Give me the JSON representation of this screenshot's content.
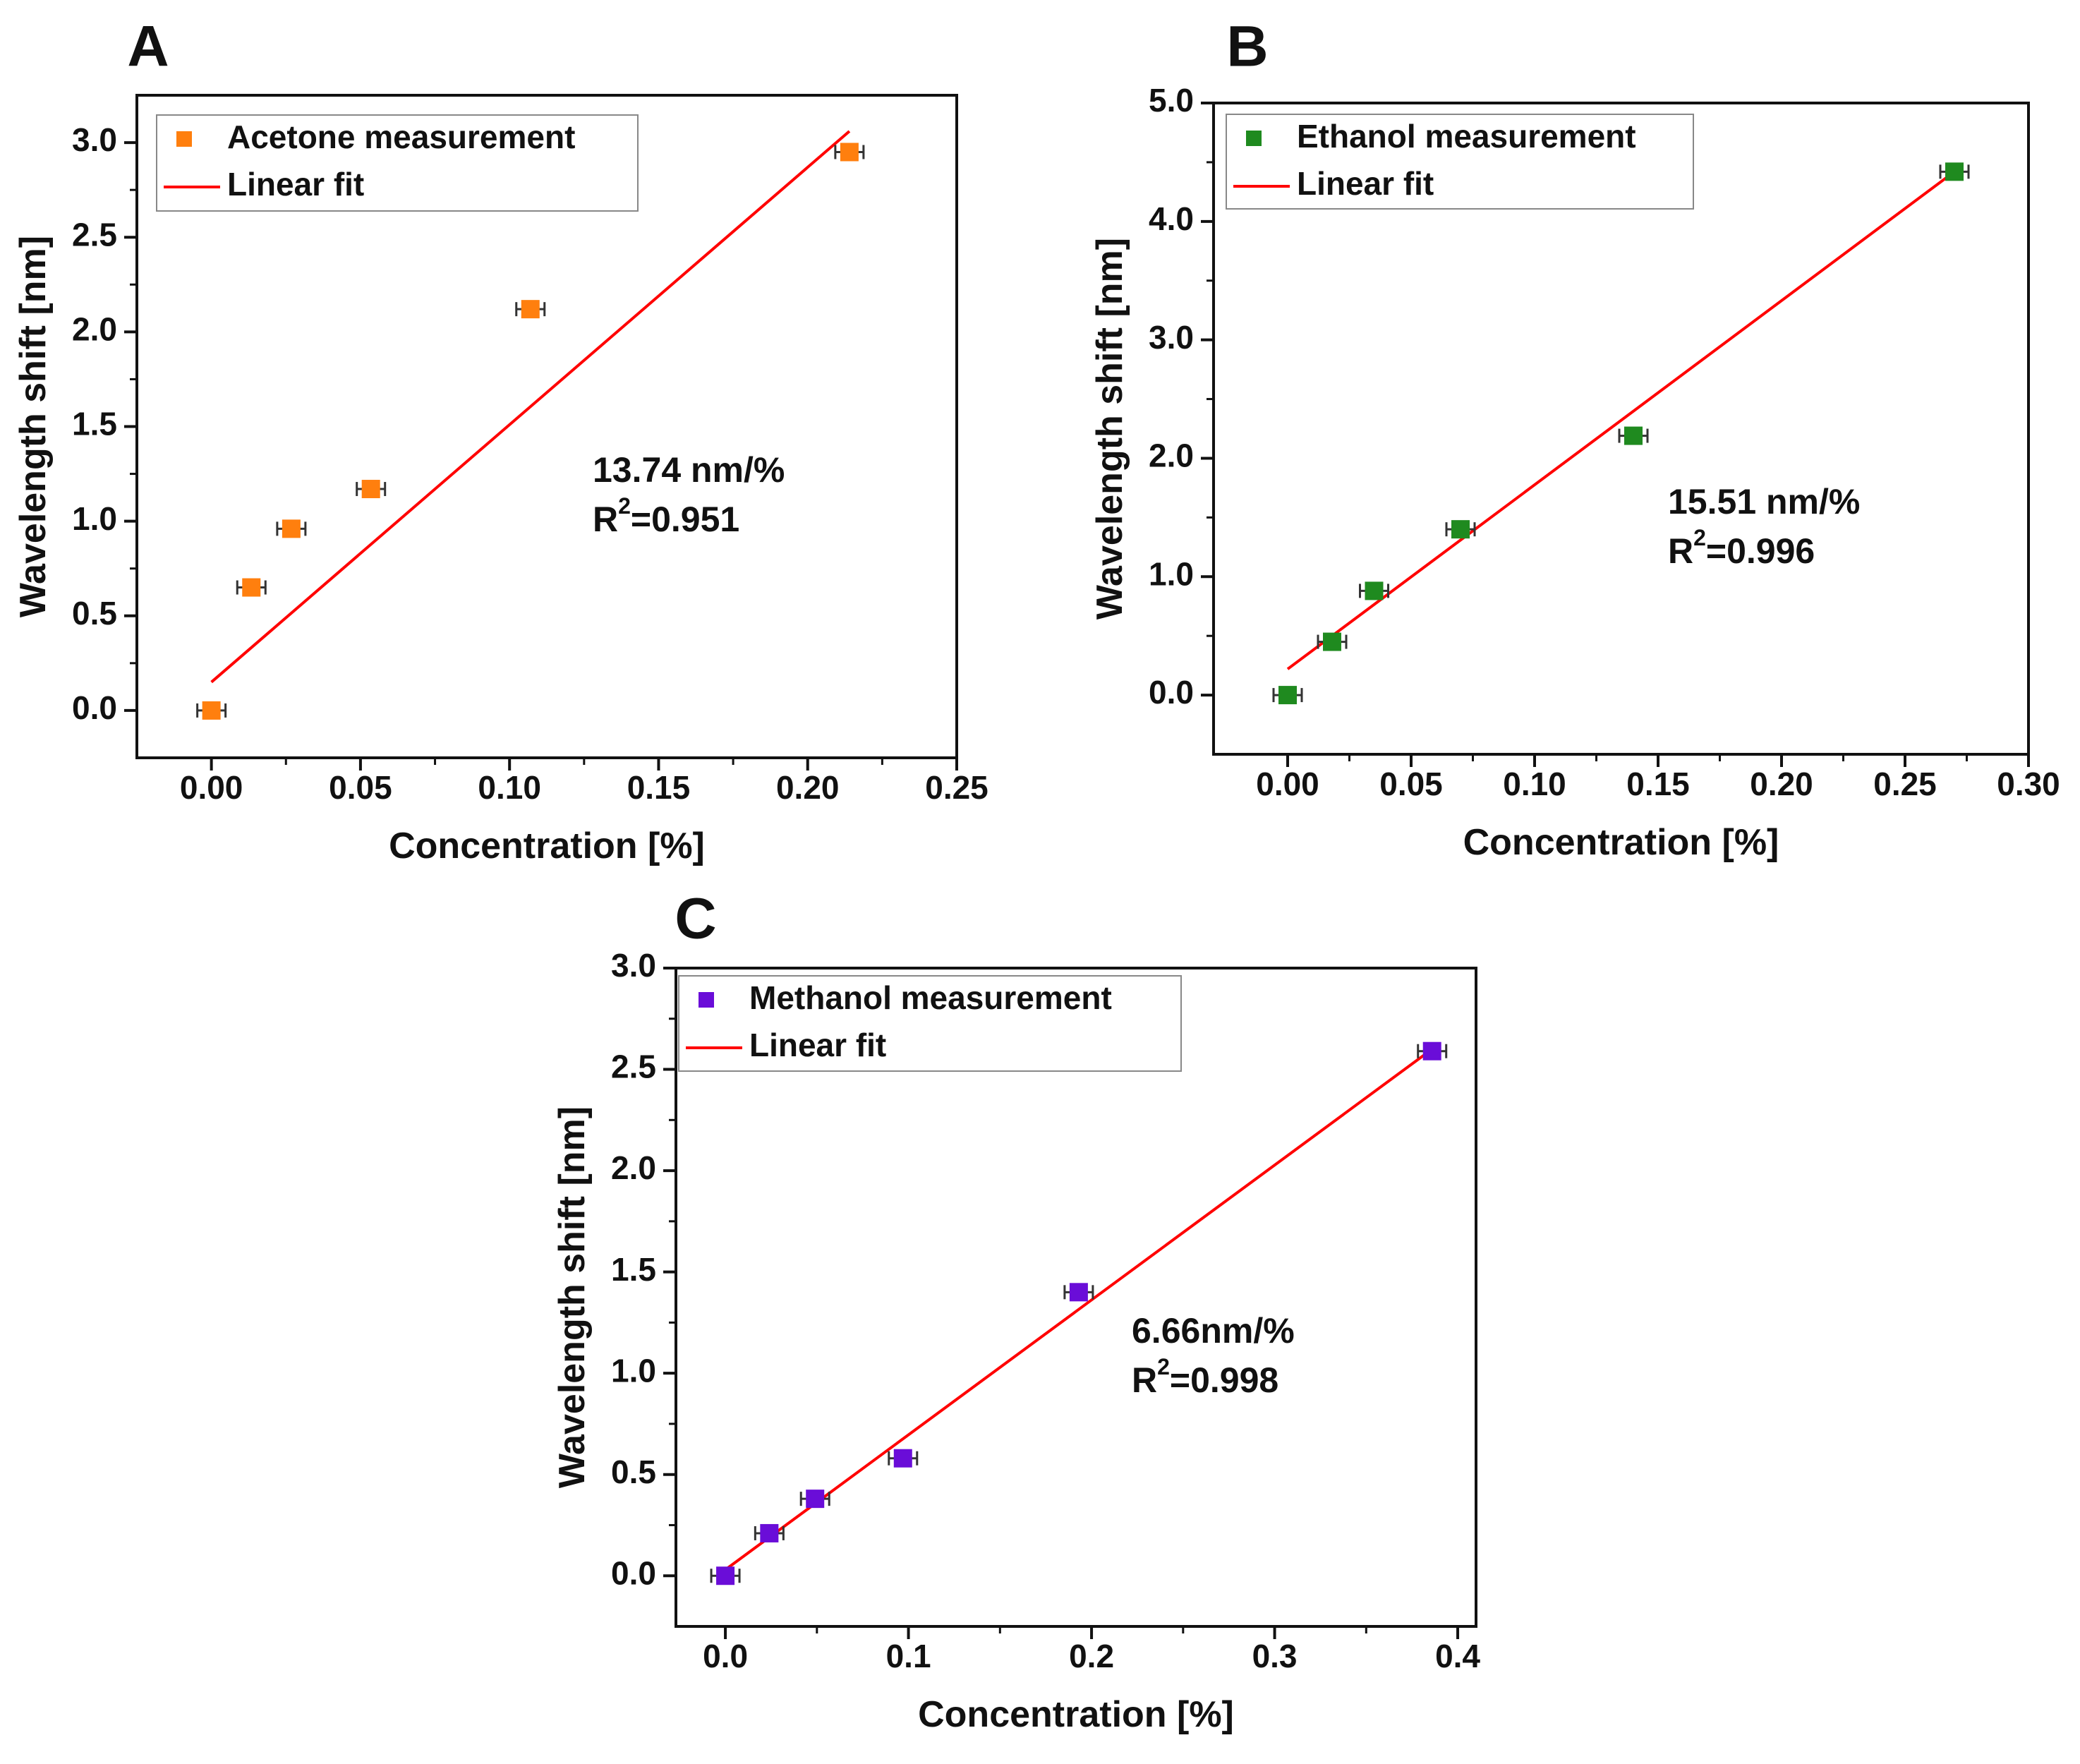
{
  "figure": {
    "panels": [
      "A",
      "B",
      "C"
    ]
  },
  "chart_data": [
    {
      "panel": "A",
      "type": "scatter",
      "xlabel": "Concentration [%]",
      "ylabel": "Wavelength shift [nm]",
      "xlim": [
        -0.025,
        0.25
      ],
      "ylim": [
        -0.25,
        3.25
      ],
      "xticks": [
        0.0,
        0.05,
        0.1,
        0.15,
        0.2,
        0.25
      ],
      "yticks": [
        0.0,
        0.5,
        1.0,
        1.5,
        2.0,
        2.5,
        3.0
      ],
      "x_decimals": 2,
      "y_decimals": 1,
      "grid": false,
      "legend_position": "top-left",
      "series": [
        {
          "name": "Acetone measurement",
          "kind": "scatter",
          "color": "#ff7f0e",
          "x": [
            0.0,
            0.0134,
            0.0268,
            0.0535,
            0.107,
            0.214
          ],
          "y": [
            0.0,
            0.65,
            0.96,
            1.17,
            2.12,
            2.95
          ]
        },
        {
          "name": "Linear fit",
          "kind": "line",
          "color": "#ff0000",
          "x": [
            0.0,
            0.214
          ],
          "y": [
            0.15,
            3.06
          ]
        }
      ],
      "annotation": {
        "sensitivity": "13.74 nm/%",
        "r2_prefix": "R",
        "r2_sup": "2",
        "r2_value": "=0.951"
      }
    },
    {
      "panel": "B",
      "type": "scatter",
      "xlabel": "Concentration [%]",
      "ylabel": "Wavelength shift [nm]",
      "xlim": [
        -0.03,
        0.3
      ],
      "ylim": [
        -0.5,
        5.0
      ],
      "xticks": [
        0.0,
        0.05,
        0.1,
        0.15,
        0.2,
        0.25,
        0.3
      ],
      "yticks": [
        0.0,
        1.0,
        2.0,
        3.0,
        4.0,
        5.0
      ],
      "x_decimals": 2,
      "y_decimals": 1,
      "grid": false,
      "legend_position": "top-left",
      "series": [
        {
          "name": "Ethanol measurement",
          "kind": "scatter",
          "color": "#1f8a1f",
          "x": [
            0.0,
            0.018,
            0.035,
            0.07,
            0.14,
            0.27
          ],
          "y": [
            0.0,
            0.45,
            0.88,
            1.4,
            2.19,
            4.42
          ]
        },
        {
          "name": "Linear fit",
          "kind": "line",
          "color": "#ff0000",
          "x": [
            0.0,
            0.27
          ],
          "y": [
            0.22,
            4.42
          ]
        }
      ],
      "annotation": {
        "sensitivity": "15.51 nm/%",
        "r2_prefix": "R",
        "r2_sup": "2",
        "r2_value": "=0.996"
      }
    },
    {
      "panel": "C",
      "type": "scatter",
      "xlabel": "Concentration [%]",
      "ylabel": "Wavelength shift [nm]",
      "xlim": [
        -0.027,
        0.41
      ],
      "ylim": [
        -0.25,
        3.0
      ],
      "xticks": [
        0.0,
        0.1,
        0.2,
        0.3,
        0.4
      ],
      "yticks": [
        0.0,
        0.5,
        1.0,
        1.5,
        2.0,
        2.5,
        3.0
      ],
      "x_decimals": 1,
      "y_decimals": 1,
      "grid": false,
      "legend_position": "top-left",
      "series": [
        {
          "name": "Methanol measurement",
          "kind": "scatter",
          "color": "#6a0dd8",
          "x": [
            0.0,
            0.024,
            0.049,
            0.097,
            0.193,
            0.386
          ],
          "y": [
            0.0,
            0.21,
            0.38,
            0.58,
            1.4,
            2.59
          ]
        },
        {
          "name": "Linear fit",
          "kind": "line",
          "color": "#ff0000",
          "x": [
            0.0,
            0.386
          ],
          "y": [
            0.03,
            2.6
          ]
        }
      ],
      "annotation": {
        "sensitivity": "6.66nm/%",
        "r2_prefix": "R",
        "r2_sup": "2",
        "r2_value": "=0.998"
      }
    }
  ]
}
